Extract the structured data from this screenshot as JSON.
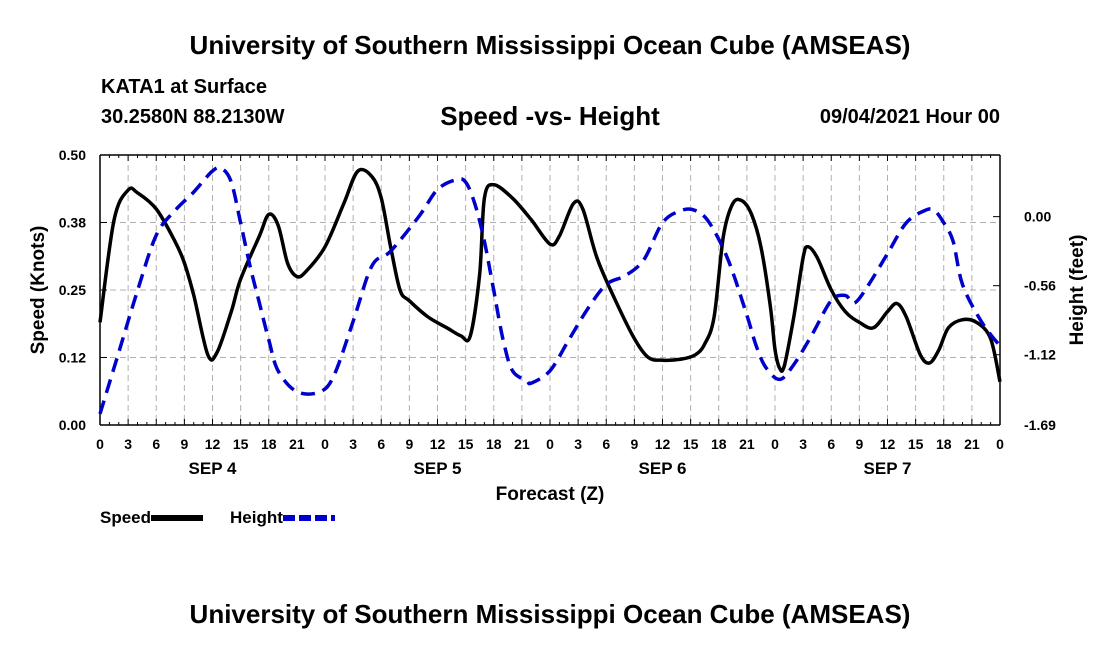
{
  "header": {
    "title": "University of Southern Mississippi Ocean Cube (AMSEAS)",
    "station": "KATA1 at Surface",
    "coordinates": "30.2580N  88.2130W",
    "datetime": "09/04/2021 Hour 00"
  },
  "footer": {
    "title": "University of Southern Mississippi Ocean Cube (AMSEAS)"
  },
  "chart_data": {
    "type": "line",
    "title": "Speed -vs- Height",
    "xlabel": "Forecast (Z)",
    "ylabel": "Speed (Knots)",
    "y2label": "Height (feet)",
    "x_range_hours": [
      0,
      96
    ],
    "ylim": [
      0,
      0.5
    ],
    "y2lim": [
      -1.69,
      0.5
    ],
    "y_ticks": [
      "0.00",
      "0.12",
      "0.25",
      "0.38",
      "0.50"
    ],
    "y_tick_values": [
      0,
      0.125,
      0.25,
      0.375,
      0.5
    ],
    "y2_ticks": [
      "-1.69",
      "-1.12",
      "-0.56",
      "0.00"
    ],
    "y2_tick_values": [
      -1.69,
      -1.12,
      -0.56,
      0.0
    ],
    "x_tick_labels": [
      "0",
      "3",
      "6",
      "9",
      "12",
      "15",
      "18",
      "21",
      "0",
      "3",
      "6",
      "9",
      "12",
      "15",
      "18",
      "21",
      "0",
      "3",
      "6",
      "9",
      "12",
      "15",
      "18",
      "21",
      "0",
      "3",
      "6",
      "9",
      "12",
      "15",
      "18",
      "21",
      "0"
    ],
    "day_labels": [
      "SEP 4",
      "SEP 5",
      "SEP 6",
      "SEP 7"
    ],
    "grid": true,
    "legend": "bottom-left",
    "series": [
      {
        "name": "Speed",
        "color": "#000000",
        "style": "solid",
        "axis": "left",
        "points": [
          [
            0,
            0.19
          ],
          [
            1.5,
            0.38
          ],
          [
            3,
            0.435
          ],
          [
            4,
            0.43
          ],
          [
            6,
            0.4
          ],
          [
            8,
            0.34
          ],
          [
            9,
            0.3
          ],
          [
            10,
            0.24
          ],
          [
            11.5,
            0.13
          ],
          [
            12.5,
            0.135
          ],
          [
            14,
            0.21
          ],
          [
            15,
            0.27
          ],
          [
            17,
            0.35
          ],
          [
            18,
            0.39
          ],
          [
            19,
            0.37
          ],
          [
            20,
            0.3
          ],
          [
            21,
            0.275
          ],
          [
            22,
            0.285
          ],
          [
            24,
            0.33
          ],
          [
            26,
            0.41
          ],
          [
            27.5,
            0.47
          ],
          [
            29,
            0.46
          ],
          [
            30,
            0.42
          ],
          [
            31,
            0.33
          ],
          [
            32,
            0.25
          ],
          [
            33,
            0.23
          ],
          [
            35,
            0.2
          ],
          [
            37,
            0.18
          ],
          [
            38.5,
            0.165
          ],
          [
            39.5,
            0.165
          ],
          [
            40.5,
            0.28
          ],
          [
            41,
            0.42
          ],
          [
            42,
            0.445
          ],
          [
            44,
            0.42
          ],
          [
            46,
            0.38
          ],
          [
            48,
            0.335
          ],
          [
            49,
            0.35
          ],
          [
            50.5,
            0.41
          ],
          [
            51.5,
            0.4
          ],
          [
            53,
            0.31
          ],
          [
            55,
            0.23
          ],
          [
            57,
            0.16
          ],
          [
            58.5,
            0.125
          ],
          [
            60,
            0.12
          ],
          [
            62,
            0.122
          ],
          [
            63.5,
            0.13
          ],
          [
            64.5,
            0.15
          ],
          [
            65.5,
            0.2
          ],
          [
            66.5,
            0.35
          ],
          [
            67.5,
            0.41
          ],
          [
            68.5,
            0.415
          ],
          [
            69.5,
            0.39
          ],
          [
            70.5,
            0.33
          ],
          [
            71.5,
            0.22
          ],
          [
            72,
            0.14
          ],
          [
            72.5,
            0.105
          ],
          [
            73,
            0.11
          ],
          [
            74,
            0.2
          ],
          [
            75,
            0.31
          ],
          [
            75.5,
            0.33
          ],
          [
            76.5,
            0.31
          ],
          [
            78,
            0.25
          ],
          [
            79.5,
            0.21
          ],
          [
            81,
            0.19
          ],
          [
            82.5,
            0.18
          ],
          [
            84,
            0.21
          ],
          [
            85,
            0.225
          ],
          [
            86,
            0.2
          ],
          [
            87.5,
            0.13
          ],
          [
            88.5,
            0.115
          ],
          [
            89.5,
            0.14
          ],
          [
            90.5,
            0.18
          ],
          [
            92,
            0.195
          ],
          [
            93.5,
            0.19
          ],
          [
            95,
            0.16
          ],
          [
            96,
            0.08
          ]
        ]
      },
      {
        "name": "Height",
        "color": "#0000cc",
        "style": "dashed",
        "axis": "right",
        "points": [
          [
            0,
            -1.6
          ],
          [
            2,
            -1.1
          ],
          [
            4,
            -0.6
          ],
          [
            6,
            -0.15
          ],
          [
            8,
            0.05
          ],
          [
            10,
            0.2
          ],
          [
            12,
            0.37
          ],
          [
            13,
            0.39
          ],
          [
            14,
            0.28
          ],
          [
            15,
            -0.05
          ],
          [
            16,
            -0.4
          ],
          [
            17,
            -0.7
          ],
          [
            18,
            -1.0
          ],
          [
            19,
            -1.25
          ],
          [
            21,
            -1.42
          ],
          [
            23.5,
            -1.42
          ],
          [
            25,
            -1.28
          ],
          [
            27,
            -0.85
          ],
          [
            29,
            -0.4
          ],
          [
            31,
            -0.28
          ],
          [
            34,
            0.0
          ],
          [
            36,
            0.22
          ],
          [
            38,
            0.3
          ],
          [
            39,
            0.28
          ],
          [
            40,
            0.1
          ],
          [
            41,
            -0.2
          ],
          [
            42,
            -0.6
          ],
          [
            43,
            -1.0
          ],
          [
            44,
            -1.25
          ],
          [
            45.5,
            -1.33
          ],
          [
            46,
            -1.35
          ],
          [
            48,
            -1.25
          ],
          [
            50,
            -1.0
          ],
          [
            52,
            -0.75
          ],
          [
            54,
            -0.55
          ],
          [
            56,
            -0.48
          ],
          [
            58,
            -0.35
          ],
          [
            60,
            -0.05
          ],
          [
            62,
            0.05
          ],
          [
            63.5,
            0.05
          ],
          [
            65,
            -0.05
          ],
          [
            67,
            -0.35
          ],
          [
            69,
            -0.8
          ],
          [
            70,
            -1.05
          ],
          [
            71,
            -1.22
          ],
          [
            72.5,
            -1.32
          ],
          [
            74,
            -1.2
          ],
          [
            76,
            -0.95
          ],
          [
            78,
            -0.68
          ],
          [
            79.5,
            -0.64
          ],
          [
            80.5,
            -0.7
          ],
          [
            82,
            -0.55
          ],
          [
            84,
            -0.3
          ],
          [
            86,
            -0.05
          ],
          [
            88,
            0.05
          ],
          [
            89,
            0.05
          ],
          [
            90,
            -0.05
          ],
          [
            91,
            -0.2
          ],
          [
            92,
            -0.55
          ],
          [
            94,
            -0.85
          ],
          [
            96,
            -1.05
          ]
        ]
      }
    ]
  }
}
